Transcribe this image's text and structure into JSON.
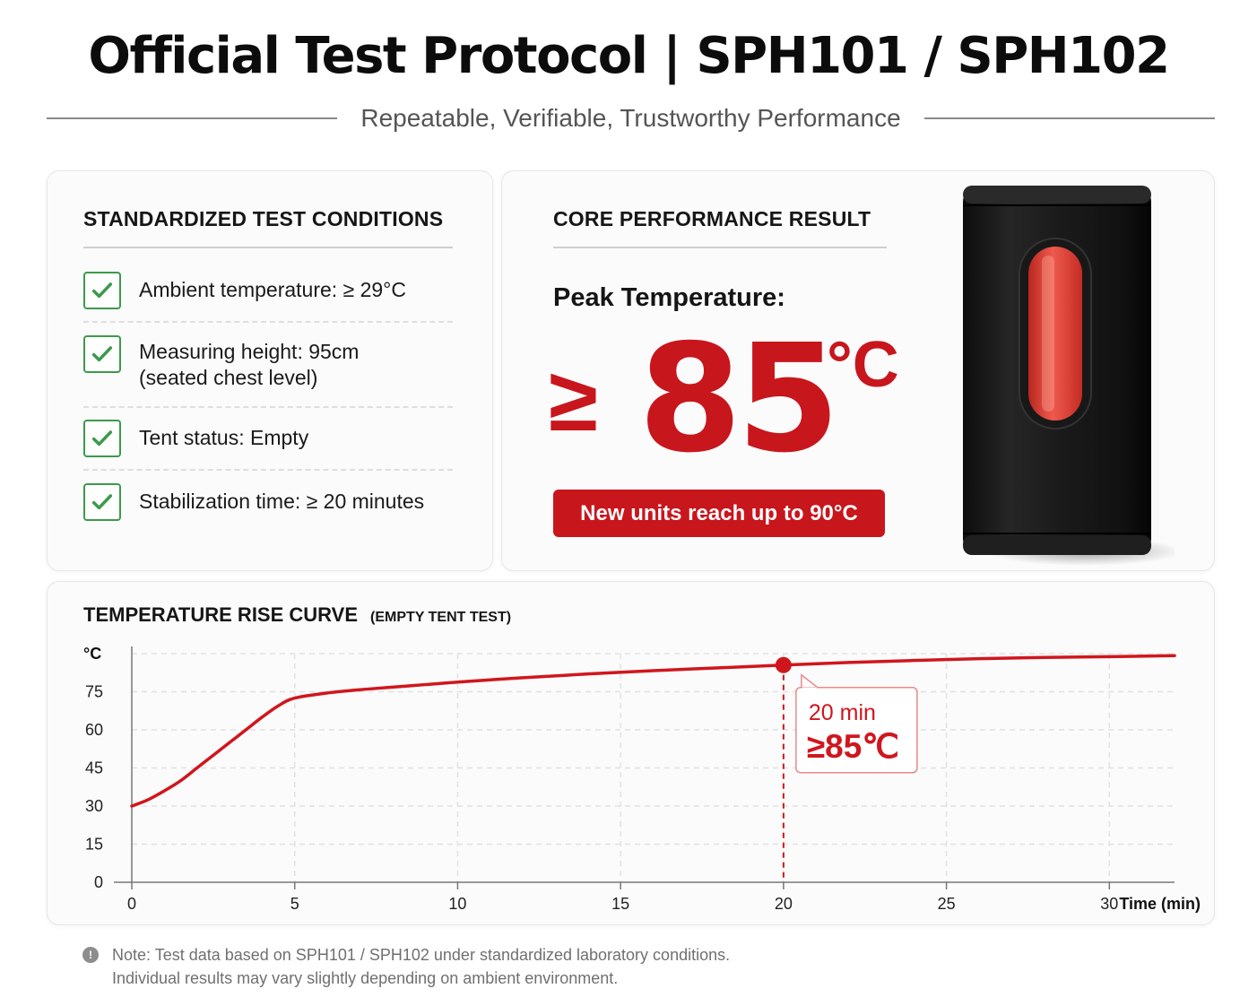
{
  "header": {
    "title": "Official Test Protocol | SPH101 / SPH102",
    "subtitle": "Repeatable, Verifiable, Trustworthy Performance"
  },
  "conditions": {
    "heading": "STANDARDIZED TEST CONDITIONS",
    "items": [
      {
        "label": "Ambient temperature: ≥ 29°C"
      },
      {
        "label": "Measuring height: 95cm\n(seated chest level)"
      },
      {
        "label": "Tent status: Empty"
      },
      {
        "label": "Stabilization time: ≥ 20 minutes"
      }
    ],
    "check_color": "#3c9a4b"
  },
  "result": {
    "heading": "CORE PERFORMANCE RESULT",
    "peak_label": "Peak Temperature:",
    "ge_symbol": "≥",
    "value": "85",
    "unit": "°C",
    "badge": "New units reach up to 90°C",
    "accent_color": "#c8161d"
  },
  "chart_data": {
    "type": "line",
    "title": "TEMPERATURE RISE CURVE",
    "subtitle": "(EMPTY TENT TEST)",
    "xlabel": "Time (min)",
    "ylabel": "°C",
    "xlim": [
      0,
      32
    ],
    "ylim": [
      0,
      90
    ],
    "x_ticks": [
      0,
      5,
      10,
      15,
      20,
      25,
      30
    ],
    "y_ticks": [
      0,
      15,
      30,
      45,
      60,
      75
    ],
    "grid": true,
    "series": [
      {
        "color": "#d0161d",
        "x": [
          0,
          0.5,
          1,
          1.5,
          2,
          2.5,
          3,
          3.5,
          4,
          4.5,
          5,
          6,
          7,
          8,
          9,
          10,
          12,
          14,
          16,
          18,
          20,
          22,
          24,
          26,
          28,
          30,
          32
        ],
        "y": [
          30,
          32.5,
          36,
          40,
          45,
          50,
          55,
          60,
          65,
          69.5,
          72.5,
          74.5,
          75.8,
          76.8,
          77.8,
          78.8,
          80.5,
          82,
          83.3,
          84.4,
          85.5,
          86.5,
          87.3,
          88,
          88.5,
          88.8,
          89.2
        ]
      }
    ],
    "annotation": {
      "x": 20,
      "y": 85.5,
      "line1": "20 min",
      "line2": "≥85℃"
    }
  },
  "note": {
    "icon": "info-icon",
    "line1": "Note: Test data based on SPH101 / SPH102 under standardized laboratory conditions.",
    "line2": "Individual results may vary slightly depending on ambient environment."
  }
}
